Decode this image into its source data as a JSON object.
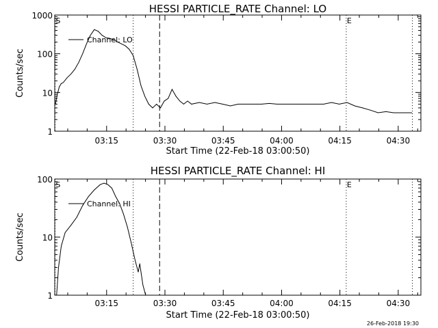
{
  "chart_data": [
    {
      "type": "line",
      "title": "HESSI PARTICLE_RATE Channel: LO",
      "ylabel": "Counts/sec",
      "xlabel": "Start Time (22-Feb-18 03:00:50)",
      "y_scale": "log",
      "ylim": [
        1,
        1000
      ],
      "xlim_minutes": [
        0.83,
        95.0
      ],
      "x_tick_labels": [
        "03:15",
        "03:30",
        "03:45",
        "04:00",
        "04:15",
        "04:30"
      ],
      "y_tick_labels": [
        "1",
        "10",
        "100",
        "1000"
      ],
      "legend": "Channel: LO",
      "markers": [
        {
          "label": "S",
          "style": "dotted",
          "x_minute": 0.9
        },
        {
          "style": "dotted",
          "x_minute": 21.0
        },
        {
          "style": "dashed",
          "x_minute": 27.8
        },
        {
          "label": "E",
          "style": "dotted",
          "x_minute": 75.8
        },
        {
          "style": "dotted",
          "x_minute": 92.8
        }
      ],
      "series": [
        {
          "x_minutes": [
            1.0,
            1.5,
            2.0,
            2.5,
            3.0,
            4.0,
            5.0,
            6.0,
            7.0,
            8.0,
            9.0,
            10.0,
            11.0,
            12.0,
            13.0,
            14.0,
            15.0,
            16.0,
            17.0,
            18.0,
            19.0,
            20.0,
            21.0,
            22.0,
            23.0,
            24.0,
            25.0,
            26.0,
            27.0,
            28.0,
            29.0,
            30.0,
            31.0,
            32.0,
            33.0,
            34.0,
            35.0,
            36.0,
            38.0,
            40.0,
            42.0,
            44.0,
            46.0,
            48.0,
            50.0,
            52.0,
            54.0,
            56.0,
            58.0,
            60.0,
            62.0,
            64.0,
            66.0,
            68.0,
            70.0,
            72.0,
            74.0,
            76.0,
            78.0,
            80.0,
            82.0,
            84.0,
            86.0,
            88.0,
            90.0,
            92.7
          ],
          "y": [
            5,
            9,
            14,
            17,
            18,
            24,
            30,
            40,
            60,
            100,
            180,
            300,
            420,
            380,
            300,
            260,
            250,
            230,
            200,
            180,
            160,
            130,
            90,
            40,
            15,
            8,
            5,
            4,
            5,
            4,
            6,
            7,
            12,
            8,
            6,
            5,
            6,
            5,
            5.5,
            5,
            5.5,
            5,
            4.5,
            5,
            5,
            5,
            5,
            5.2,
            5,
            5,
            5,
            5,
            5,
            5,
            5,
            5.5,
            5,
            5.5,
            4.5,
            4,
            3.5,
            3,
            3.2,
            3,
            3,
            3
          ]
        }
      ]
    },
    {
      "type": "line",
      "title": "HESSI PARTICLE_RATE Channel: HI",
      "ylabel": "Counts/sec",
      "xlabel": "Start Time (22-Feb-18 03:00:50)",
      "y_scale": "log",
      "ylim": [
        1,
        100
      ],
      "xlim_minutes": [
        0.83,
        95.0
      ],
      "x_tick_labels": [
        "03:15",
        "03:30",
        "03:45",
        "04:00",
        "04:15",
        "04:30"
      ],
      "y_tick_labels": [
        "1",
        "10",
        "100"
      ],
      "legend": "Channel: HI",
      "markers": [
        {
          "label": "S",
          "style": "dotted",
          "x_minute": 0.9
        },
        {
          "style": "dotted",
          "x_minute": 21.0
        },
        {
          "style": "dashed",
          "x_minute": 27.8
        },
        {
          "label": "E",
          "style": "dotted",
          "x_minute": 75.8
        },
        {
          "style": "dotted",
          "x_minute": 92.8
        }
      ],
      "series": [
        {
          "x_minutes": [
            1.3,
            1.8,
            2.5,
            3.5,
            5.0,
            6.5,
            8.0,
            9.5,
            11.0,
            12.5,
            13.5,
            14.5,
            15.5,
            16.5,
            17.5,
            18.5,
            19.5,
            20.5,
            21.5,
            22.3,
            22.7,
            23.5,
            24.2
          ],
          "y": [
            1,
            3,
            7,
            12,
            16,
            22,
            35,
            50,
            65,
            80,
            85,
            80,
            70,
            50,
            38,
            25,
            15,
            8,
            4,
            2.5,
            3.5,
            1.5,
            1
          ]
        }
      ]
    }
  ],
  "footer": {
    "timestamp": "26-Feb-2018 19:30"
  }
}
